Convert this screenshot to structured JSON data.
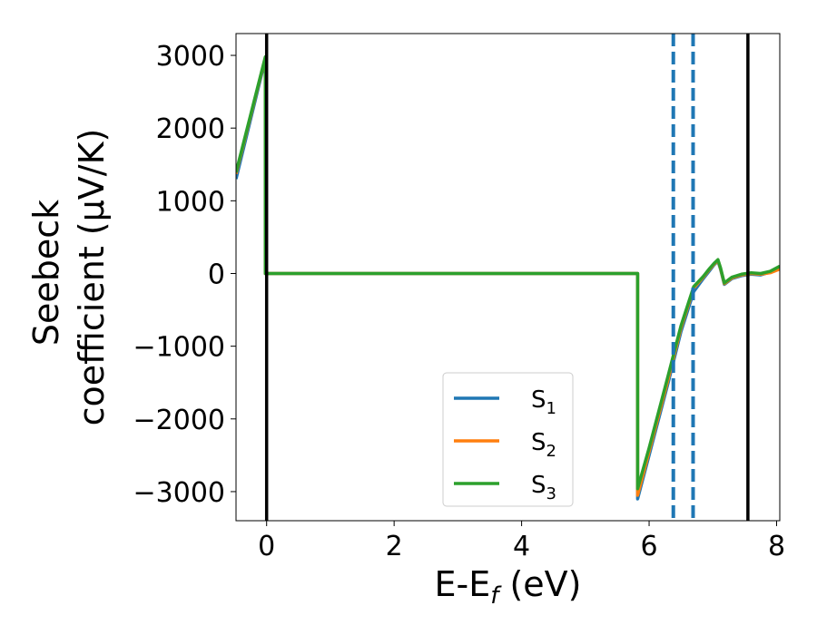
{
  "chart_data": {
    "type": "line",
    "xlabel": "E-E",
    "xlabel_sub": "f",
    "xlabel_unit": " (eV)",
    "ylabel_line1": "Seebeck",
    "ylabel_line2": "coefficient  (μV/K)",
    "xlim": [
      -0.48,
      8.05
    ],
    "ylim": [
      -3400,
      3300
    ],
    "xticks": [
      0,
      2,
      4,
      6,
      8
    ],
    "yticks": [
      3000,
      2000,
      1000,
      0,
      -1000,
      -2000,
      -3000
    ],
    "ytick_labels": [
      "3000",
      "2000",
      "1000",
      "0",
      "−1000",
      "−2000",
      "−3000"
    ],
    "legend": {
      "position": "lower center",
      "entries": [
        {
          "prefix": "S",
          "sub": "1"
        },
        {
          "prefix": "S",
          "sub": "2"
        },
        {
          "prefix": "S",
          "sub": "3"
        }
      ]
    },
    "vlines": [
      {
        "x": 0.0,
        "style": "solid",
        "color": "#000000"
      },
      {
        "x": 7.55,
        "style": "solid",
        "color": "#000000"
      },
      {
        "x": 6.38,
        "style": "dashed",
        "color": "#1f77b4"
      },
      {
        "x": 6.69,
        "style": "dashed",
        "color": "#1f77b4"
      }
    ],
    "series": [
      {
        "name": "S1",
        "color": "#1f77b4",
        "x": [
          -0.48,
          -0.02,
          -0.02,
          0.0,
          5.82,
          5.82,
          6.0,
          6.3,
          6.5,
          6.7,
          6.85,
          6.95,
          7.02,
          7.08,
          7.12,
          7.18,
          7.3,
          7.45,
          7.6,
          7.75,
          7.9,
          8.05
        ],
        "y": [
          1300,
          2950,
          0,
          0,
          0,
          -3100,
          -2500,
          -1500,
          -800,
          -250,
          -70,
          40,
          120,
          170,
          60,
          -150,
          -70,
          -30,
          -10,
          -20,
          20,
          80
        ]
      },
      {
        "name": "S2",
        "color": "#ff7f0e",
        "x": [
          -0.48,
          -0.02,
          -0.02,
          0.0,
          5.82,
          5.82,
          6.0,
          6.3,
          6.5,
          6.7,
          6.85,
          6.95,
          7.02,
          7.08,
          7.12,
          7.18,
          7.3,
          7.45,
          7.6,
          7.75,
          7.9,
          8.05
        ],
        "y": [
          1370,
          2970,
          0,
          0,
          0,
          -3050,
          -2450,
          -1450,
          -750,
          -200,
          -50,
          60,
          130,
          180,
          70,
          -140,
          -60,
          -20,
          0,
          -10,
          10,
          60
        ]
      },
      {
        "name": "S3",
        "color": "#2ca02c",
        "x": [
          -0.48,
          -0.02,
          -0.02,
          0.0,
          5.82,
          5.82,
          6.0,
          6.3,
          6.5,
          6.7,
          6.85,
          6.95,
          7.02,
          7.08,
          7.12,
          7.18,
          7.3,
          7.45,
          7.6,
          7.75,
          7.9,
          8.05
        ],
        "y": [
          1390,
          2980,
          0,
          0,
          0,
          -2960,
          -2400,
          -1400,
          -720,
          -180,
          -40,
          70,
          140,
          190,
          80,
          -130,
          -50,
          -10,
          10,
          0,
          30,
          100
        ]
      }
    ]
  }
}
